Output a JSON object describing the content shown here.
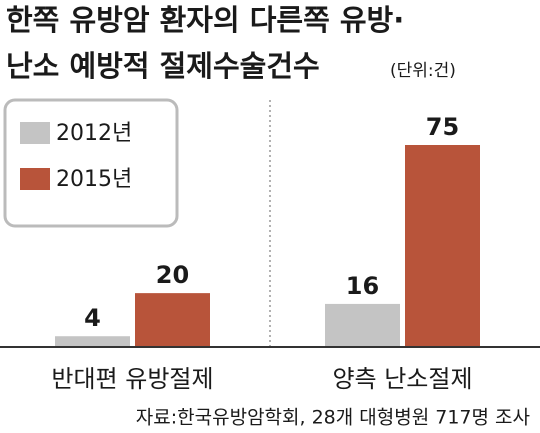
{
  "chart_data": {
    "type": "bar",
    "title": [
      "한쪽 유방암 환자의 다른쪽 유방·",
      "난소 예방적 절제수술건수"
    ],
    "subtitle": "(단위:건)",
    "categories": [
      "반대편 유방절제",
      "양측 난소절제"
    ],
    "series": [
      {
        "name": "2012년",
        "color": "#c4c4c4",
        "values": [
          4,
          16
        ]
      },
      {
        "name": "2015년",
        "color": "#b8543a",
        "values": [
          20,
          75
        ]
      }
    ],
    "source": "자료:한국유방암학회, 28개 대형병원 717명 조사"
  }
}
